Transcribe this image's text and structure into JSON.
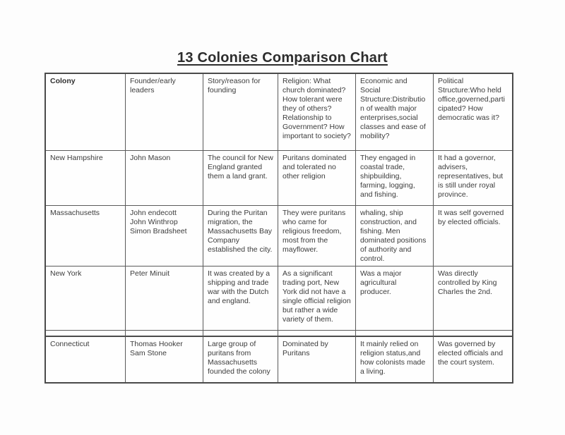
{
  "title": "13 Colonies Comparison Chart",
  "table": {
    "header": {
      "colony": "Colony",
      "founders": "Founder/early leaders",
      "story": "Story/reason for founding",
      "religion": "Religion: What church dominated? How tolerant were they of others? Relationship to Government? How important to society?",
      "economic": "Economic and Social Structure:Distribution of wealth major enterprises,social classes and ease of mobility?",
      "political": "Political Structure:Who held office,governed,participated? How democratic was it?"
    },
    "rows": [
      {
        "colony": "New Hampshire",
        "founders": "John Mason",
        "story": "The council for New England granted them a land grant.",
        "religion": "Puritans dominated and tolerated no other religion",
        "economic": "They engaged in coastal trade, shipbuilding, farming, logging, and fishing.",
        "political": "It had a governor, advisers, representatives, but is still under royal province."
      },
      {
        "colony": "Massachusetts",
        "founders": "John endecott\nJohn Winthrop\nSimon Bradsheet",
        "story": "During the Puritan migration, the Massachusetts Bay Company established the city.",
        "religion": "They were puritans who came for religious freedom, most from the mayflower.",
        "economic": "whaling, ship construction, and fishing.  Men dominated positions of authority and control.",
        "political": "It was self governed by elected officials."
      },
      {
        "colony": "New York",
        "founders": "Peter Minuit",
        "story": "It was created by a shipping and trade war with the Dutch and england.",
        "religion": "As a significant trading port, New York did not have a single official religion but rather a wide variety of them.",
        "economic": "Was a major agricultural producer.",
        "political": "Was directly controlled by King Charles the 2nd."
      },
      {
        "colony": "Connecticut",
        "founders": "Thomas Hooker\nSam Stone",
        "story": "Large group of puritans from Massachusetts founded the colony",
        "religion": "Dominated by Puritans",
        "economic": "It mainly relied on religion status,and how colonists made a living.",
        "political": "Was governed by elected officials and the court system."
      }
    ]
  },
  "colors": {
    "outer_border": "#4a4a4a",
    "inner_border": "#5a5a5a",
    "text": "#3c3c3c",
    "background": "#fdfdfd"
  }
}
